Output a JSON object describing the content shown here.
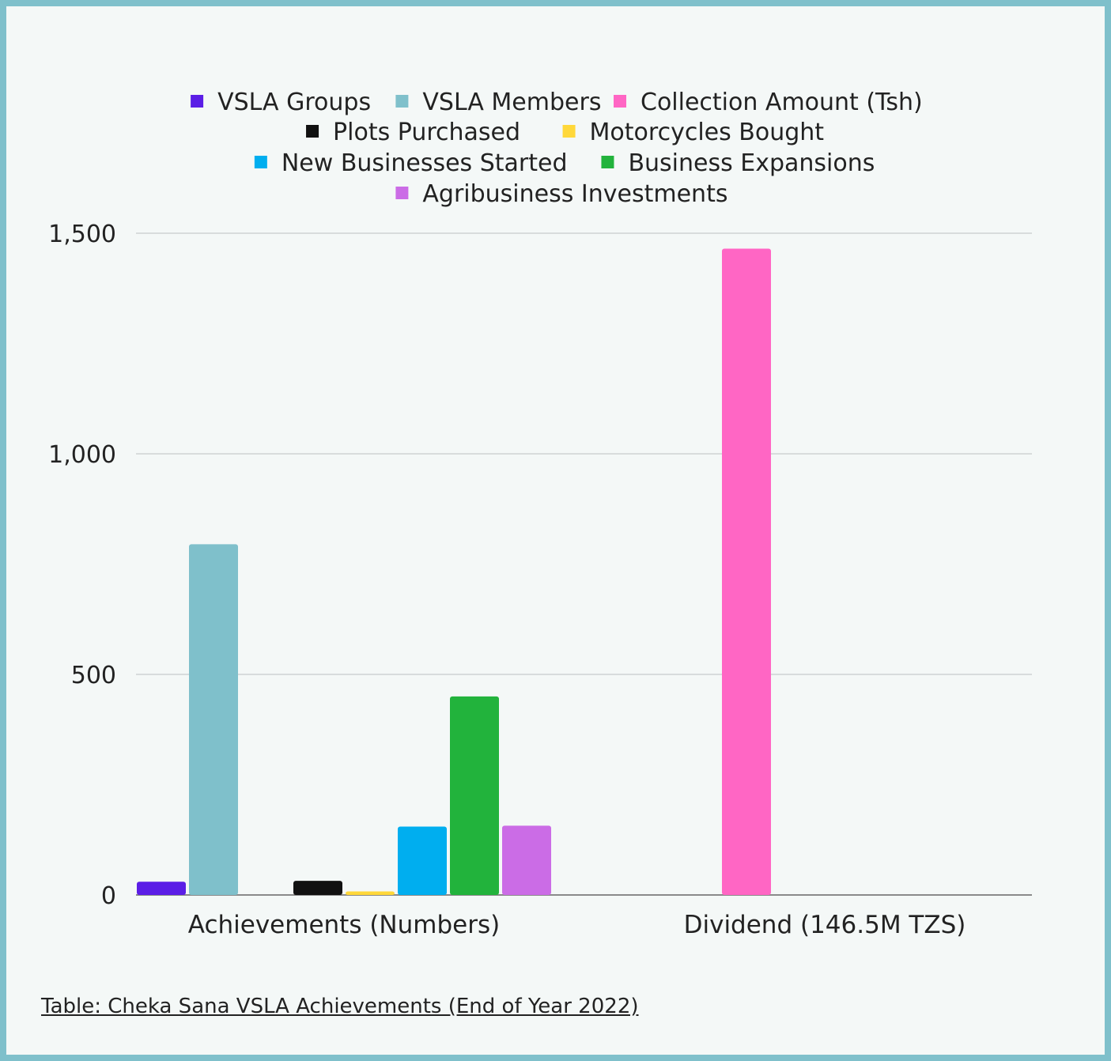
{
  "caption": "Table: Cheka Sana VSLA Achievements (End of Year 2022)",
  "chart_data": {
    "type": "bar",
    "title": "",
    "xlabel": "",
    "ylabel": "",
    "ylim": [
      0,
      1500
    ],
    "yticks": [
      0,
      500,
      1000,
      1500
    ],
    "ytick_labels": [
      "0",
      "500",
      "1,000",
      "1,500"
    ],
    "grid": true,
    "legend_position": "top",
    "categories": [
      "Achievements (Numbers)",
      "Dividend (146.5M TZS)"
    ],
    "series": [
      {
        "name": "VSLA Groups",
        "color": "#5b1ee6",
        "values": [
          30,
          null
        ]
      },
      {
        "name": "VSLA Members",
        "color": "#7fc0cb",
        "values": [
          795,
          null
        ]
      },
      {
        "name": "Collection Amount (Tsh)",
        "color": "#ff66c4",
        "values": [
          null,
          1465
        ]
      },
      {
        "name": "Plots Purchased",
        "color": "#111111",
        "values": [
          32,
          null
        ]
      },
      {
        "name": "Motorcycles Bought",
        "color": "#ffd83a",
        "values": [
          8,
          null
        ]
      },
      {
        "name": "New Businesses Started",
        "color": "#00aeef",
        "values": [
          155,
          null
        ]
      },
      {
        "name": "Business Expansions",
        "color": "#22b33c",
        "values": [
          450,
          null
        ]
      },
      {
        "name": "Agribusiness Investments",
        "color": "#cb6ce6",
        "values": [
          157,
          null
        ]
      }
    ]
  }
}
